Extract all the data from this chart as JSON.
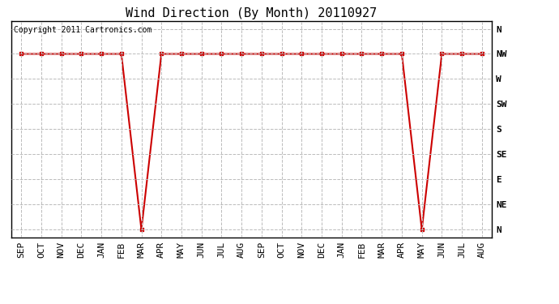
{
  "title": "Wind Direction (By Month) 20110927",
  "copyright_text": "Copyright 2011 Cartronics.com",
  "x_labels": [
    "SEP",
    "OCT",
    "NOV",
    "DEC",
    "JAN",
    "FEB",
    "MAR",
    "APR",
    "MAY",
    "JUN",
    "JUL",
    "AUG",
    "SEP",
    "OCT",
    "NOV",
    "DEC",
    "JAN",
    "FEB",
    "MAR",
    "APR",
    "MAY",
    "JUN",
    "JUL",
    "AUG"
  ],
  "y_ticks_labels": [
    "N",
    "NE",
    "E",
    "SE",
    "S",
    "SW",
    "W",
    "NW",
    "N"
  ],
  "y_ticks_values": [
    0,
    1,
    2,
    3,
    4,
    5,
    6,
    7,
    8
  ],
  "y_values": [
    7,
    7,
    7,
    7,
    7,
    7,
    0,
    7,
    7,
    7,
    7,
    7,
    7,
    7,
    7,
    7,
    7,
    7,
    7,
    7,
    0,
    7,
    7,
    7
  ],
  "line_color": "#cc0000",
  "marker": "s",
  "marker_size": 3,
  "line_width": 1.5,
  "background_color": "#ffffff",
  "grid_color": "#bbbbbb",
  "title_fontsize": 11,
  "copyright_fontsize": 7,
  "tick_fontsize": 8,
  "ylim": [
    0,
    8
  ],
  "figsize": [
    6.9,
    3.75
  ],
  "dpi": 100
}
